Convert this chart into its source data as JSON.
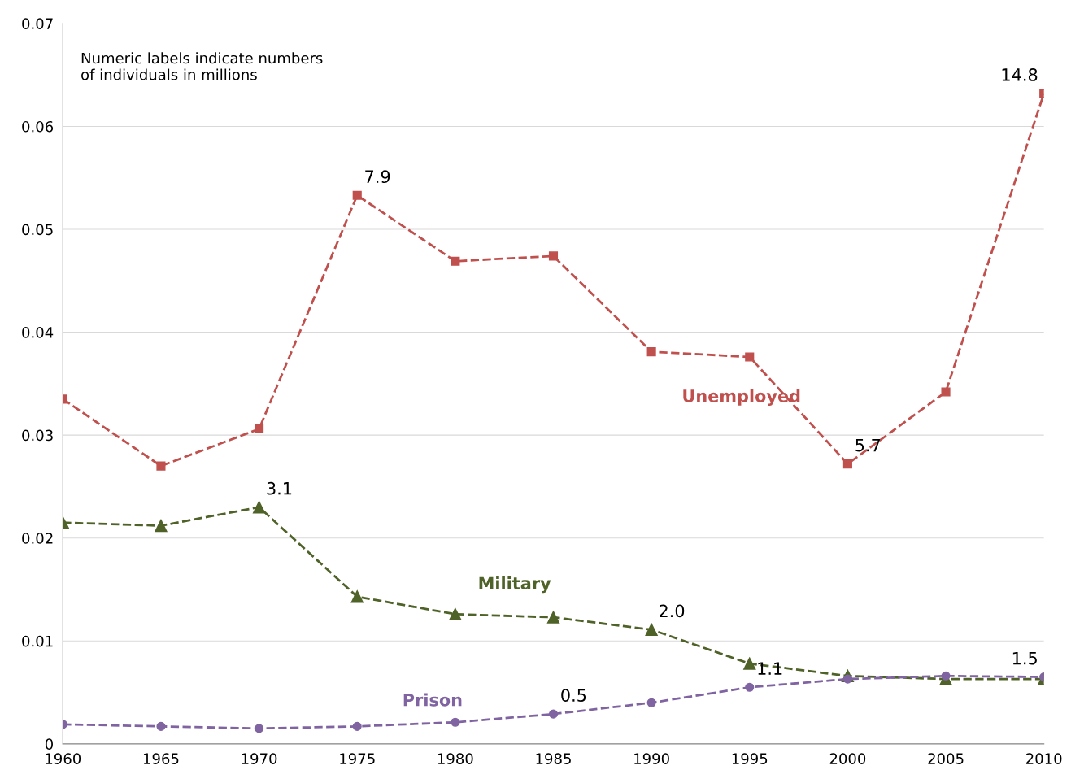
{
  "chart_data": {
    "type": "line",
    "x": [
      1960,
      1965,
      1970,
      1975,
      1980,
      1985,
      1990,
      1995,
      2000,
      2005,
      2010
    ],
    "series": [
      {
        "name": "Unemployed",
        "color": "#c0504d",
        "marker": "square",
        "values": [
          0.0335,
          0.027,
          0.0306,
          0.0533,
          0.0469,
          0.0474,
          0.0381,
          0.0376,
          0.0272,
          0.0342,
          0.0632
        ]
      },
      {
        "name": "Military",
        "color": "#4f6228",
        "marker": "triangle",
        "values": [
          0.0215,
          0.0212,
          0.023,
          0.0143,
          0.0126,
          0.0123,
          0.0111,
          0.0078,
          0.0066,
          0.0063,
          0.0063
        ]
      },
      {
        "name": "Prison",
        "color": "#8064a2",
        "marker": "circle",
        "values": [
          0.0019,
          0.0017,
          0.0015,
          0.0017,
          0.0021,
          0.0029,
          0.004,
          0.0055,
          0.0063,
          0.0066,
          0.0065
        ]
      }
    ],
    "line_style": "dashed",
    "xlim": [
      1960,
      2010
    ],
    "xticks": [
      1960,
      1965,
      1970,
      1975,
      1980,
      1985,
      1990,
      1995,
      2000,
      2005,
      2010
    ],
    "ylim": [
      0,
      0.07
    ],
    "yticks": [
      0,
      0.01,
      0.02,
      0.03,
      0.04,
      0.05,
      0.06,
      0.07
    ],
    "grid": "y",
    "legend": false,
    "annotations": [
      "Numeric labels indicate numbers\nof individuals in millions",
      {
        "text": "7.9",
        "x": 1975,
        "y": 0.0533
      },
      {
        "text": "14.8",
        "x": 2010,
        "y": 0.0632
      },
      {
        "text": "5.7",
        "x": 2000,
        "y": 0.0272
      },
      {
        "text": "3.1",
        "x": 1970,
        "y": 0.023
      },
      {
        "text": "2.0",
        "x": 1990,
        "y": 0.0111
      },
      {
        "text": "0.5",
        "x": 1985,
        "y": 0.0029
      },
      {
        "text": "1.1",
        "x": 1995,
        "y": 0.0055
      },
      {
        "text": "1.5",
        "x": 2010,
        "y": 0.0065
      }
    ]
  }
}
